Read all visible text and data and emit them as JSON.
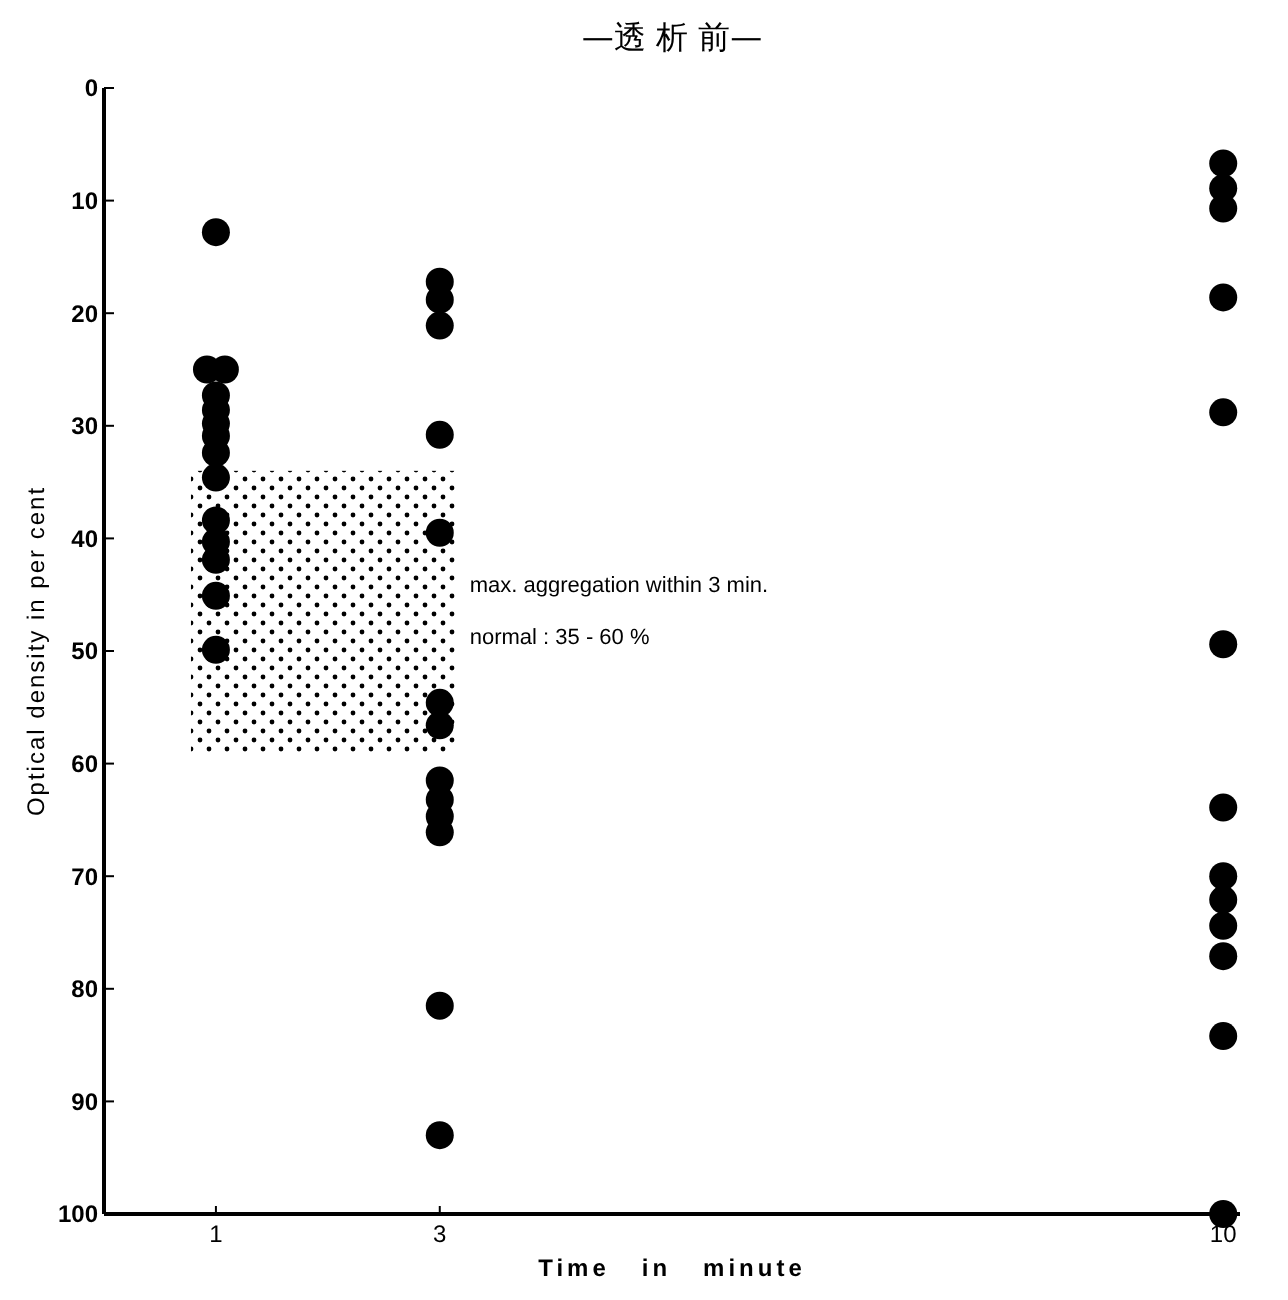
{
  "chart_data": {
    "type": "scatter",
    "title": "—透 析 前—",
    "xlabel": "Time   in   minute",
    "ylabel": "Optical density in per cent",
    "xlim": [
      0,
      10.15
    ],
    "xticks": [
      1,
      3,
      10
    ],
    "ylim": [
      100,
      0
    ],
    "yticks": [
      0,
      10,
      20,
      30,
      40,
      50,
      60,
      70,
      80,
      90,
      100
    ],
    "marker": "circle",
    "grid": false,
    "bands": [
      {
        "axis": "y",
        "from": 34,
        "to": 59
      }
    ],
    "annotations": [
      "max. aggregation within 3 min.",
      "normal : 35 - 60 %"
    ],
    "series": [
      {
        "color": "#000000",
        "x": [
          1,
          0.92,
          1.08,
          1,
          1,
          1,
          1,
          1,
          1,
          1,
          1,
          1,
          1,
          1,
          3,
          3,
          3,
          3,
          3,
          3,
          3,
          3,
          3,
          3,
          3,
          3,
          3,
          10,
          10,
          10,
          10,
          10,
          10,
          10,
          10,
          10,
          10,
          10,
          10,
          10
        ],
        "values": [
          12.8,
          25,
          25,
          27.3,
          28.6,
          29.8,
          30.9,
          32.4,
          34.6,
          38.4,
          40.3,
          41.9,
          45.1,
          49.9,
          17.2,
          18.8,
          21.1,
          30.8,
          39.5,
          54.6,
          56.6,
          61.5,
          63.2,
          64.7,
          66.1,
          81.5,
          93,
          6.7,
          8.9,
          10.7,
          18.6,
          28.8,
          49.4,
          63.9,
          70,
          72.1,
          74.4,
          77.1,
          84.2,
          100
        ]
      }
    ]
  }
}
